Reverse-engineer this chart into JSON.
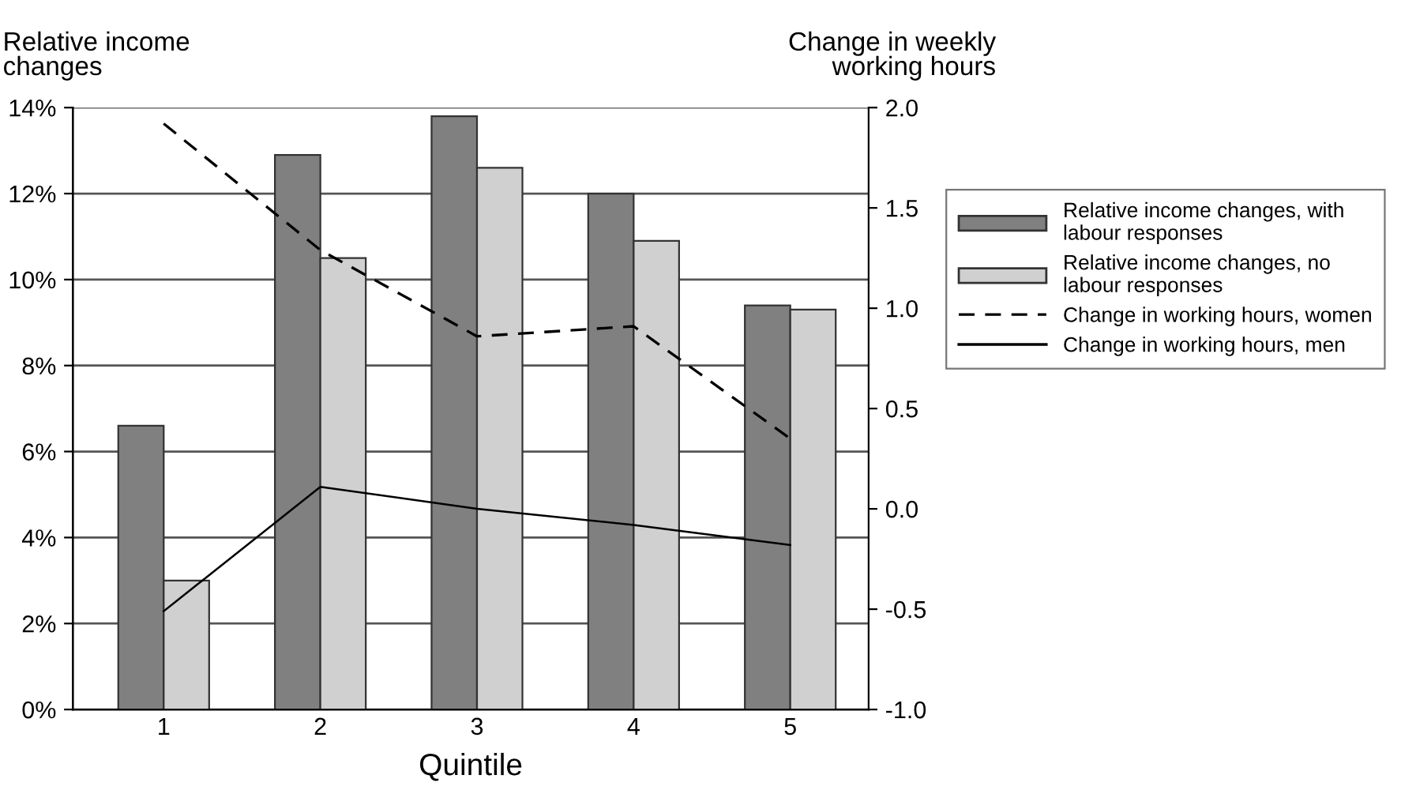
{
  "chart_data": {
    "type": "bar",
    "xlabel": "Quintile",
    "ylabel": "Relative income\nchanges",
    "y2label": "Change in weekly\nworking hours",
    "categories": [
      "1",
      "2",
      "3",
      "4",
      "5"
    ],
    "series": [
      {
        "name": "Relative income changes, with\nlabour responses",
        "color": "#808080",
        "values": [
          6.6,
          12.9,
          13.8,
          12.0,
          9.4
        ]
      },
      {
        "name": "Relative income changes, no\nlabour responses",
        "color": "#d0d0d0",
        "values": [
          3.0,
          10.5,
          12.6,
          10.9,
          9.3
        ]
      },
      {
        "name": "Change in working hours, women",
        "type": "line",
        "axis": "y2",
        "color": "#000000",
        "line_style": "dashed",
        "values": [
          1.92,
          1.29,
          0.86,
          0.91,
          0.35
        ]
      },
      {
        "name": "Change in working hours, men",
        "type": "line",
        "axis": "y2",
        "color": "#000000",
        "line_style": "solid",
        "values": [
          -0.51,
          0.11,
          0.0,
          -0.08,
          -0.18
        ]
      }
    ],
    "ylim": [
      0,
      14
    ],
    "yticks": [
      {
        "value": 0,
        "label": "0%"
      },
      {
        "value": 2,
        "label": "2%"
      },
      {
        "value": 4,
        "label": "4%"
      },
      {
        "value": 6,
        "label": "6%"
      },
      {
        "value": 8,
        "label": "8%"
      },
      {
        "value": 10,
        "label": "10%"
      },
      {
        "value": 12,
        "label": "12%"
      },
      {
        "value": 14,
        "label": "14%"
      }
    ],
    "y2lim": [
      -1.0,
      2.0
    ],
    "y2ticks": [
      {
        "value": -1.0,
        "label": "-1.0"
      },
      {
        "value": -0.5,
        "label": "-0.5"
      },
      {
        "value": 0.0,
        "label": "0.0"
      },
      {
        "value": 0.5,
        "label": "0.5"
      },
      {
        "value": 1.0,
        "label": "1.0"
      },
      {
        "value": 1.5,
        "label": "1.5"
      },
      {
        "value": 2.0,
        "label": "2.0"
      }
    ],
    "grid": "y",
    "legend": "right",
    "marker": "none"
  }
}
